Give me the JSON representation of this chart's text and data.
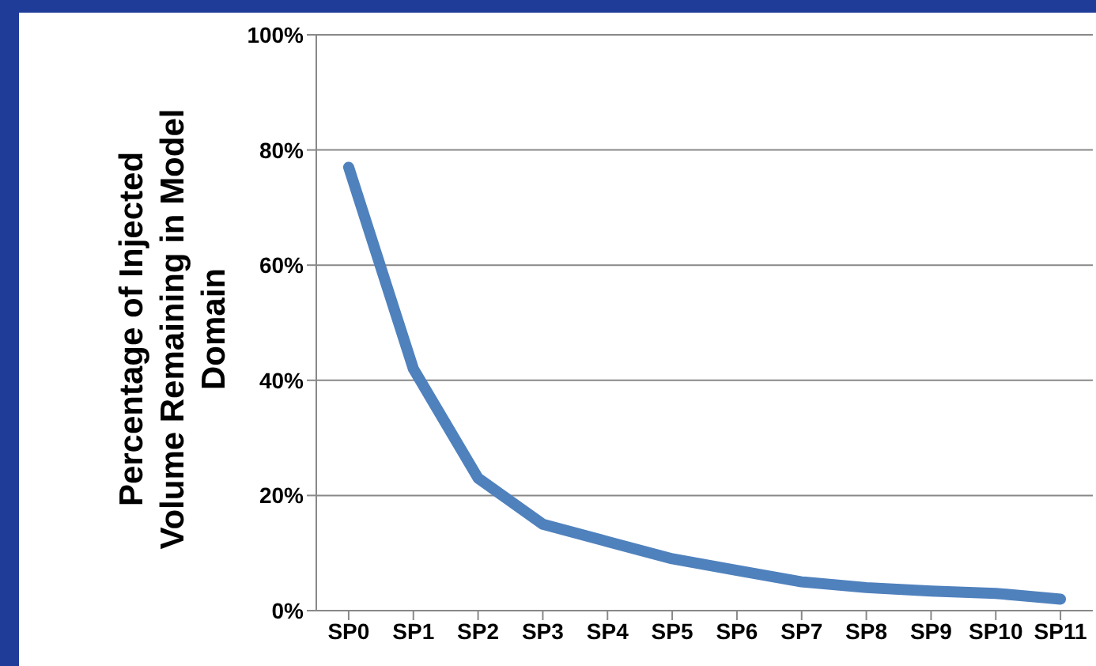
{
  "chart_data": {
    "type": "line",
    "ylabel": "Percentage of Injected Volume Remaining in Model Domain",
    "categories": [
      "SP0",
      "SP1",
      "SP2",
      "SP3",
      "SP4",
      "SP5",
      "SP6",
      "SP7",
      "SP8",
      "SP9",
      "SP10",
      "SP11"
    ],
    "series": [
      {
        "color": "#4f81bd",
        "values": [
          77,
          42,
          23,
          15,
          12,
          9,
          7,
          5,
          4,
          3.4,
          3,
          2
        ]
      }
    ],
    "ylim": [
      0,
      100
    ],
    "yticks": [
      {
        "value": 0,
        "label": "0%"
      },
      {
        "value": 20,
        "label": "20%"
      },
      {
        "value": 40,
        "label": "40%"
      },
      {
        "value": 60,
        "label": "60%"
      },
      {
        "value": 80,
        "label": "80%"
      },
      {
        "value": 100,
        "label": "100%"
      }
    ],
    "grid": "y",
    "legend": false,
    "marker": "none",
    "line_style": "solid"
  }
}
